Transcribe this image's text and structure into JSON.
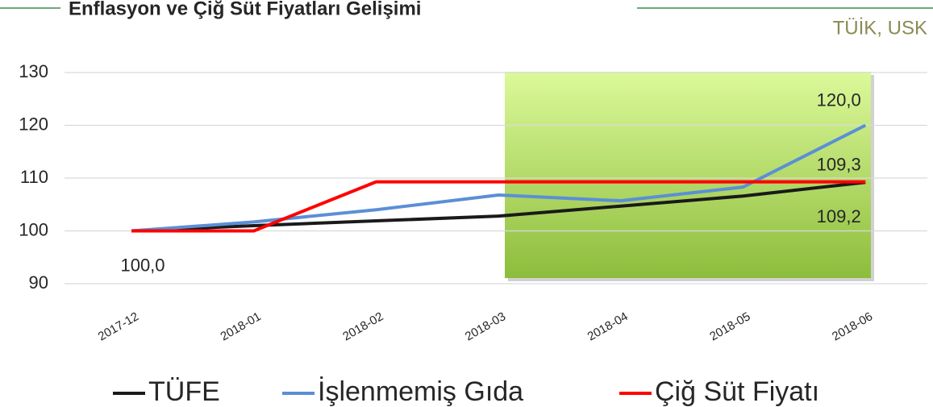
{
  "chart_data": {
    "type": "line",
    "title": "Enflasyon ve Çiğ Süt Fiyatları Gelişimi",
    "source": "TÜİK, USK",
    "categories": [
      "2017-12",
      "2018-01",
      "2018-02",
      "2018-03",
      "2018-04",
      "2018-05",
      "2018-06"
    ],
    "series": [
      {
        "name": "TÜFE",
        "color": "#1a1a1a",
        "values": [
          100,
          101,
          101.9,
          102.8,
          104.7,
          106.6,
          109.2
        ],
        "value_labels": [
          "100,0",
          null,
          null,
          null,
          null,
          null,
          "109,2"
        ]
      },
      {
        "name": "İşlenmemiş Gıda",
        "color": "#5b8fd6",
        "values": [
          100,
          101.7,
          104,
          106.8,
          105.7,
          108.3,
          120
        ],
        "value_labels": [
          null,
          null,
          null,
          null,
          null,
          null,
          "120,0"
        ]
      },
      {
        "name": "Çiğ Süt Fiyatı",
        "color": "#ff0000",
        "values": [
          100,
          100,
          109.3,
          109.3,
          109.3,
          109.3,
          109.3
        ],
        "value_labels": [
          null,
          null,
          null,
          null,
          null,
          null,
          "109,3"
        ]
      }
    ],
    "ylim": [
      90,
      130
    ],
    "yticks": [
      90,
      100,
      110,
      120,
      130
    ],
    "grid": true,
    "legend": "bottom"
  }
}
